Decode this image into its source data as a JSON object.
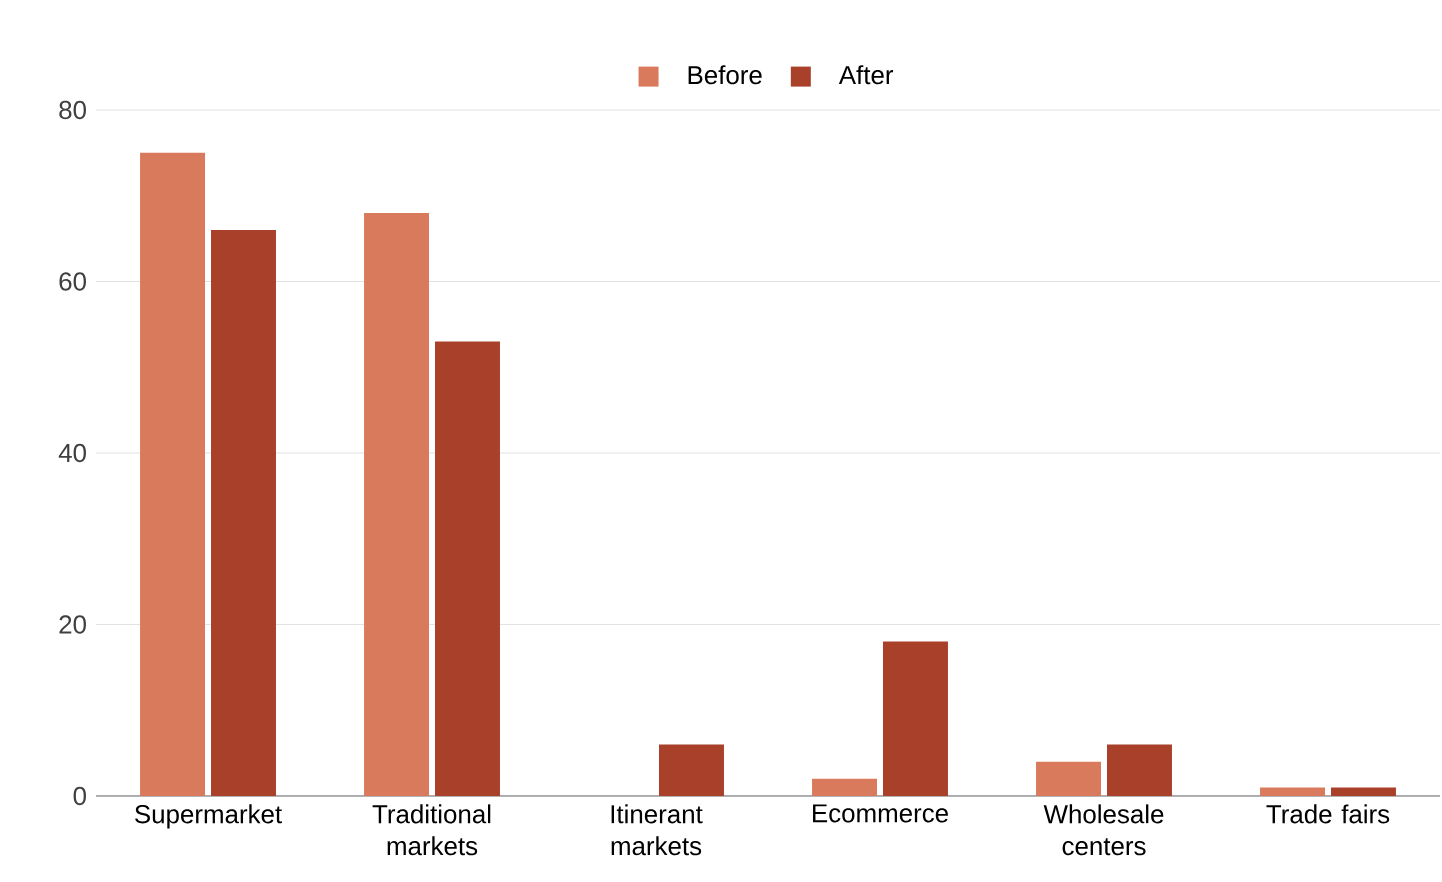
{
  "chart_data": {
    "type": "bar",
    "categories": [
      "Supermarket",
      "Traditional markets",
      "Itinerant markets",
      "Ecommerce",
      "Wholesale centers",
      "Trade fairs"
    ],
    "series": [
      {
        "name": "Before",
        "color": "#d97a5c",
        "values": [
          75,
          68,
          0,
          2,
          4,
          1
        ]
      },
      {
        "name": "After",
        "color": "#a8402a",
        "values": [
          66,
          53,
          6,
          18,
          6,
          1
        ]
      }
    ],
    "ylim": [
      0,
      80
    ],
    "yticks": [
      0,
      20,
      40,
      60,
      80
    ],
    "grid": "y",
    "legend": "top"
  }
}
